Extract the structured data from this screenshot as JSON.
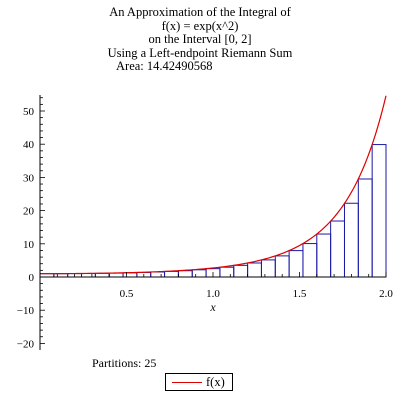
{
  "chart_data": {
    "type": "bar",
    "title_lines": [
      "An Approximation of the Integral of",
      "f(x) = exp(x^2)",
      "on the Interval [0, 2]",
      "Using a Left-endpoint Riemann Sum",
      "Area: 14.42490568"
    ],
    "xlabel": "x",
    "ylabel": "",
    "xlim": [
      0,
      2
    ],
    "ylim": [
      -20,
      55
    ],
    "x_ticks": [
      "0.5",
      "1.0",
      "1.5",
      "2.0"
    ],
    "y_ticks": [
      "-20",
      "-10",
      "0",
      "10",
      "20",
      "30",
      "40",
      "50"
    ],
    "partitions": 25,
    "bar_width": 0.08,
    "x": [
      0.0,
      0.08,
      0.16,
      0.24,
      0.32,
      0.4,
      0.48,
      0.56,
      0.64,
      0.72,
      0.8,
      0.88,
      0.96,
      1.04,
      1.12,
      1.2,
      1.28,
      1.36,
      1.44,
      1.52,
      1.6,
      1.68,
      1.76,
      1.84,
      1.92
    ],
    "values": [
      1.0,
      1.01,
      1.03,
      1.06,
      1.11,
      1.17,
      1.26,
      1.37,
      1.51,
      1.68,
      1.9,
      2.17,
      2.51,
      2.95,
      3.51,
      4.22,
      5.15,
      6.36,
      7.95,
      10.07,
      12.94,
      16.86,
      22.21,
      29.52,
      39.89
    ],
    "curve": {
      "name": "f(x)",
      "color": "#e00000",
      "x_range": [
        0,
        2
      ]
    },
    "bar_edge_color": "#1a1aa6",
    "caption": "Partitions: 25",
    "legend": {
      "label": "f(x)",
      "position": "bottom"
    },
    "grid": false
  }
}
